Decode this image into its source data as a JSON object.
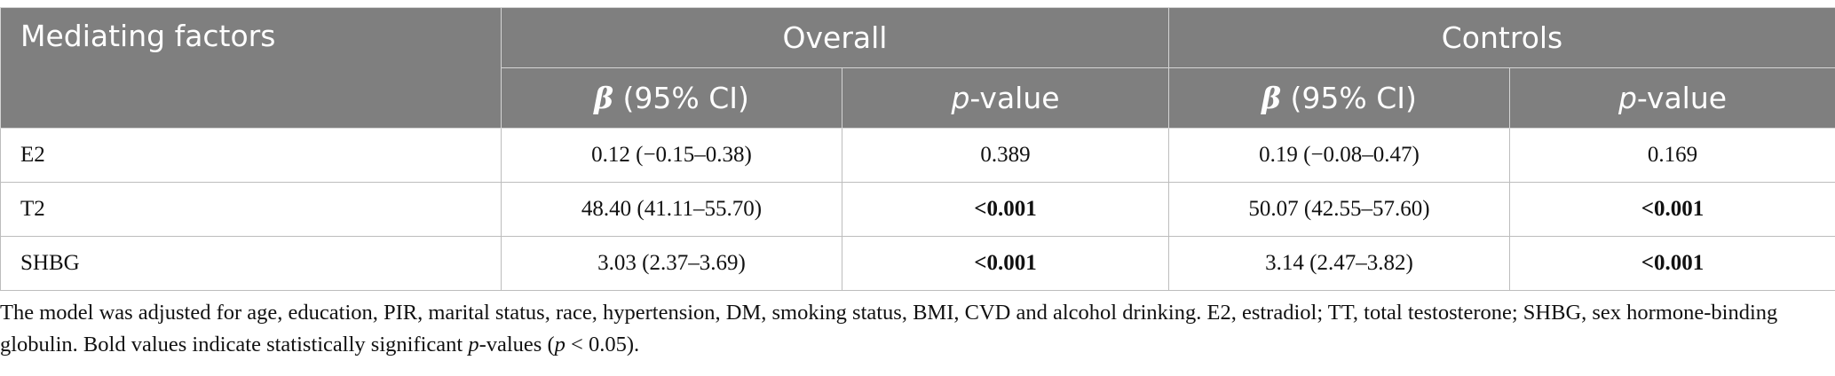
{
  "table": {
    "header": {
      "col1": "Mediating factors",
      "group1": "Overall",
      "group2": "Controls",
      "beta_label": "β",
      "ci_label": " (95% CI)",
      "p_italic": "p",
      "p_rest": "-value"
    },
    "rows": [
      {
        "factor": "E2",
        "overall_beta": "0.12 (−0.15–0.38)",
        "overall_p": "0.389",
        "controls_beta": "0.19 (−0.08–0.47)",
        "controls_p": "0.169"
      },
      {
        "factor": "T2",
        "overall_beta": "48.40 (41.11–55.70)",
        "overall_p": "<0.001",
        "controls_beta": "50.07 (42.55–57.60)",
        "controls_p": "<0.001"
      },
      {
        "factor": "SHBG",
        "overall_beta": "3.03 (2.37–3.69)",
        "overall_p": "<0.001",
        "controls_beta": "3.14 (2.47–3.82)",
        "controls_p": "<0.001"
      }
    ]
  },
  "footnote": {
    "part1": "The model was adjusted for age, education, PIR, marital status, race, hypertension, DM, smoking status, BMI, CVD and alcohol drinking. E2, estradiol; TT, total testosterone; SHBG, sex hormone-binding globulin. Bold values indicate statistically significant ",
    "p_italic": "p",
    "part2": "-values (",
    "p_italic2": "p",
    "part3": " < 0.05)."
  }
}
